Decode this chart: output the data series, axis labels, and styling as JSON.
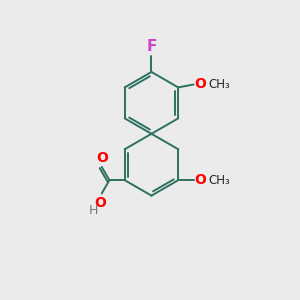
{
  "background_color": "#ebebeb",
  "bond_color": "#2d7060",
  "bond_width": 1.4,
  "atom_colors": {
    "F": "#cc44cc",
    "O": "#ff0000",
    "H": "#777777"
  },
  "font_size": 10
}
